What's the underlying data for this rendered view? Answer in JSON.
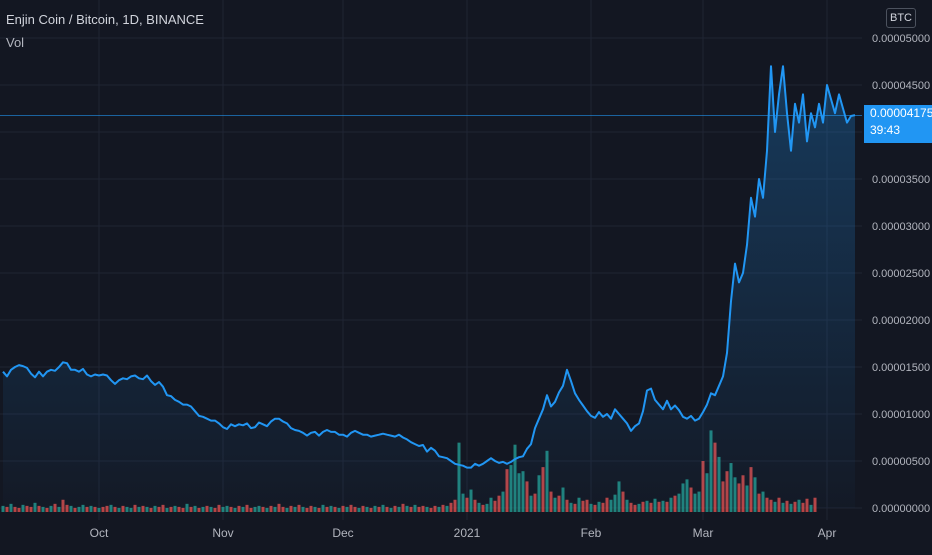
{
  "header": {
    "title": "Enjin Coin / Bitcoin, 1D, BINANCE",
    "vol_label": "Vol",
    "currency": "BTC"
  },
  "price_tag": {
    "price": "0.00004175",
    "countdown": "39:43"
  },
  "colors": {
    "background": "#131722",
    "line": "#2196f3",
    "vol_up": "#26a69a",
    "vol_down": "#ef5350",
    "grid": "#1f2433",
    "axis_text": "#b2b5be"
  },
  "chart_data": {
    "type": "line",
    "title": "Enjin Coin / Bitcoin, 1D, BINANCE",
    "xlabel": "",
    "ylabel": "",
    "ylim": [
      0,
      5e-05
    ],
    "y_ticks": [
      "0.00005000",
      "0.00004500",
      "0.00004000",
      "0.00003500",
      "0.00003000",
      "0.00002500",
      "0.00002000",
      "0.00001500",
      "0.00001000",
      "0.00000500",
      "0.00000000"
    ],
    "x_ticks": [
      "Oct",
      "Nov",
      "Dec",
      "2021",
      "Feb",
      "Mar",
      "Apr"
    ],
    "x_tick_days": [
      24,
      55,
      85,
      116,
      147,
      175,
      206
    ],
    "last_price_line": 4.175e-05,
    "grid": true,
    "series": [
      {
        "values": [
          1.45e-05,
          1.4e-05,
          1.47e-05,
          1.5e-05,
          1.52e-05,
          1.51e-05,
          1.49e-05,
          1.43e-05,
          1.39e-05,
          1.45e-05,
          1.4e-05,
          1.45e-05,
          1.47e-05,
          1.46e-05,
          1.5e-05,
          1.55e-05,
          1.54e-05,
          1.47e-05,
          1.47e-05,
          1.45e-05,
          1.48e-05,
          1.42e-05,
          1.4e-05,
          1.42e-05,
          1.41e-05,
          1.42e-05,
          1.41e-05,
          1.36e-05,
          1.32e-05,
          1.36e-05,
          1.38e-05,
          1.37e-05,
          1.4e-05,
          1.41e-05,
          1.38e-05,
          1.37e-05,
          1.41e-05,
          1.35e-05,
          1.31e-05,
          1.34e-05,
          1.29e-05,
          1.2e-05,
          1.19e-05,
          1.15e-05,
          1.13e-05,
          1.1e-05,
          1.1e-05,
          1.08e-05,
          1.03e-05,
          9.8e-06,
          9.7e-06,
          9.5e-06,
          9.3e-06,
          9.3e-06,
          9e-06,
          8.6e-06,
          8.4e-06,
          8.9e-06,
          8.7e-06,
          8.9e-06,
          8.8e-06,
          9e-06,
          8.5e-06,
          8.6e-06,
          9.1e-06,
          8.9e-06,
          8.7e-06,
          9.2e-06,
          9.5e-06,
          9.5e-06,
          9.2e-06,
          9e-06,
          8.5e-06,
          8.3e-06,
          8.2e-06,
          8e-06,
          7.7e-06,
          8e-06,
          8.1e-06,
          7.7e-06,
          8.1e-06,
          8.3e-06,
          8.1e-06,
          8.1e-06,
          7.8e-06,
          7.8e-06,
          7.6e-06,
          8e-06,
          8.2e-06,
          8e-06,
          7.8e-06,
          7.8e-06,
          7.6e-06,
          7.7e-06,
          7.8e-06,
          7.9e-06,
          7.8e-06,
          7.7e-06,
          7.6e-06,
          7.8e-06,
          7.5e-06,
          7.3e-06,
          7e-06,
          6.8e-06,
          6.6e-06,
          6.7e-06,
          6e-06,
          6.4e-06,
          6.1e-06,
          5.5e-06,
          5.4e-06,
          5.3e-06,
          5e-06,
          4.7e-06,
          4.6e-06,
          4.5e-06,
          4.3e-06,
          4.3e-06,
          4.7e-06,
          4.5e-06,
          4.7e-06,
          5e-06,
          5.3e-06,
          5e-06,
          4.8e-06,
          4.9e-06,
          4.7e-06,
          4.9e-06,
          5.2e-06,
          5.4e-06,
          5.5e-06,
          6.3e-06,
          6.8e-06,
          8.5e-06,
          9.5e-06,
          1.05e-05,
          1.2e-05,
          1.08e-05,
          1.13e-05,
          1.23e-05,
          1.3e-05,
          1.47e-05,
          1.35e-05,
          1.22e-05,
          1.15e-05,
          1.09e-05,
          1.03e-05,
          9.8e-06,
          9.6e-06,
          1.02e-05,
          9.7e-06,
          1e-05,
          9.5e-06,
          1.05e-05,
          1e-05,
          9.5e-06,
          9e-06,
          8.2e-06,
          8.7e-06,
          9e-06,
          1.03e-05,
          1.25e-05,
          1.27e-05,
          1.15e-05,
          1.1e-05,
          1.05e-05,
          1.14e-05,
          1.05e-05,
          1.09e-05,
          1.04e-05,
          9.7e-06,
          9.5e-06,
          9.8e-06,
          9.3e-06,
          9.5e-06,
          1.02e-05,
          1.1e-05,
          1.22e-05,
          1.2e-05,
          1.3e-05,
          1.4e-05,
          1.65e-05,
          2.2e-05,
          2.6e-05,
          2.4e-05,
          2.5e-05,
          2.8e-05,
          3.3e-05,
          3.1e-05,
          3.5e-05,
          3.3e-05,
          3.8e-05,
          4.7e-05,
          4e-05,
          4.4e-05,
          4.7e-05,
          4.2e-05,
          3.8e-05,
          4.3e-05,
          4.1e-05,
          4.4e-05,
          3.9e-05,
          4.2e-05,
          4.05e-05,
          4.3e-05,
          4.1e-05,
          4.5e-05,
          4.35e-05,
          4.2e-05,
          4.4e-05,
          4.25e-05,
          4.1e-05,
          4.17e-05,
          4.18e-05
        ]
      }
    ],
    "volume": {
      "ylim": [
        0,
        100
      ],
      "values": [
        6,
        5,
        8,
        5,
        4,
        7,
        6,
        5,
        9,
        6,
        5,
        4,
        6,
        8,
        5,
        12,
        7,
        6,
        4,
        5,
        7,
        5,
        6,
        5,
        4,
        5,
        6,
        7,
        5,
        4,
        6,
        5,
        4,
        7,
        5,
        6,
        5,
        4,
        6,
        5,
        7,
        4,
        5,
        6,
        5,
        4,
        8,
        5,
        6,
        4,
        5,
        6,
        5,
        4,
        7,
        5,
        6,
        5,
        4,
        6,
        5,
        7,
        4,
        5,
        6,
        5,
        4,
        6,
        5,
        8,
        5,
        4,
        6,
        5,
        7,
        5,
        4,
        6,
        5,
        4,
        7,
        5,
        6,
        5,
        4,
        6,
        5,
        7,
        5,
        4,
        6,
        5,
        4,
        6,
        5,
        7,
        5,
        4,
        6,
        5,
        8,
        6,
        5,
        7,
        5,
        6,
        5,
        4,
        6,
        5,
        7,
        6,
        9,
        12,
        68,
        18,
        14,
        22,
        12,
        9,
        7,
        8,
        14,
        11,
        16,
        20,
        42,
        46,
        66,
        38,
        40,
        30,
        16,
        18,
        36,
        44,
        60,
        20,
        14,
        16,
        24,
        12,
        9,
        8,
        14,
        11,
        12,
        8,
        7,
        10,
        9,
        14,
        12,
        17,
        30,
        20,
        12,
        9,
        7,
        8,
        10,
        11,
        9,
        13,
        10,
        11,
        10,
        14,
        16,
        18,
        28,
        32,
        24,
        18,
        20,
        50,
        38,
        80,
        68,
        54,
        30,
        40,
        48,
        34,
        28,
        36,
        26,
        44,
        34,
        18,
        20,
        14,
        12,
        10,
        14,
        9,
        11,
        8,
        10,
        12,
        9,
        13,
        7,
        14
      ],
      "colors": [
        "up",
        "down",
        "up",
        "down",
        "down",
        "up",
        "down",
        "down",
        "up",
        "down",
        "up",
        "down",
        "up",
        "down",
        "up",
        "down",
        "down",
        "up",
        "down",
        "up",
        "up",
        "down",
        "up",
        "down",
        "up",
        "down",
        "down",
        "up",
        "down",
        "up",
        "down",
        "up",
        "up",
        "down",
        "up",
        "down",
        "up",
        "down",
        "up",
        "down",
        "down",
        "up",
        "down",
        "up",
        "down",
        "down",
        "up",
        "down",
        "up",
        "down",
        "up",
        "down",
        "up",
        "down",
        "down",
        "up",
        "up",
        "down",
        "up",
        "down",
        "up",
        "down",
        "down",
        "up",
        "up",
        "down",
        "up",
        "down",
        "up",
        "down",
        "down",
        "up",
        "down",
        "up",
        "down",
        "up",
        "down",
        "down",
        "up",
        "down",
        "up",
        "down",
        "up",
        "down",
        "up",
        "down",
        "up",
        "down",
        "down",
        "up",
        "down",
        "up",
        "down",
        "up",
        "down",
        "up",
        "down",
        "up",
        "down",
        "up",
        "down",
        "up",
        "down",
        "up",
        "down",
        "down",
        "up",
        "down",
        "down",
        "up",
        "down",
        "up",
        "down",
        "down",
        "up",
        "up",
        "down",
        "up",
        "down",
        "up",
        "down",
        "up",
        "up",
        "down",
        "down",
        "up",
        "down",
        "up",
        "up",
        "up",
        "up",
        "down",
        "up",
        "down",
        "up",
        "down",
        "up",
        "down",
        "up",
        "down",
        "up",
        "down",
        "up",
        "down",
        "up",
        "down",
        "down",
        "up",
        "down",
        "up",
        "down",
        "down",
        "up",
        "up",
        "up",
        "down",
        "up",
        "down",
        "down",
        "up",
        "down",
        "up",
        "down",
        "up",
        "down",
        "up",
        "down",
        "up",
        "down",
        "up",
        "up",
        "up",
        "down",
        "up",
        "up",
        "down",
        "up",
        "up",
        "down",
        "up",
        "down",
        "down",
        "up",
        "up",
        "down",
        "down",
        "up",
        "down",
        "up",
        "down",
        "up",
        "down",
        "down",
        "up",
        "down",
        "up",
        "down",
        "up",
        "down",
        "up",
        "down",
        "down",
        "up"
      ]
    }
  }
}
